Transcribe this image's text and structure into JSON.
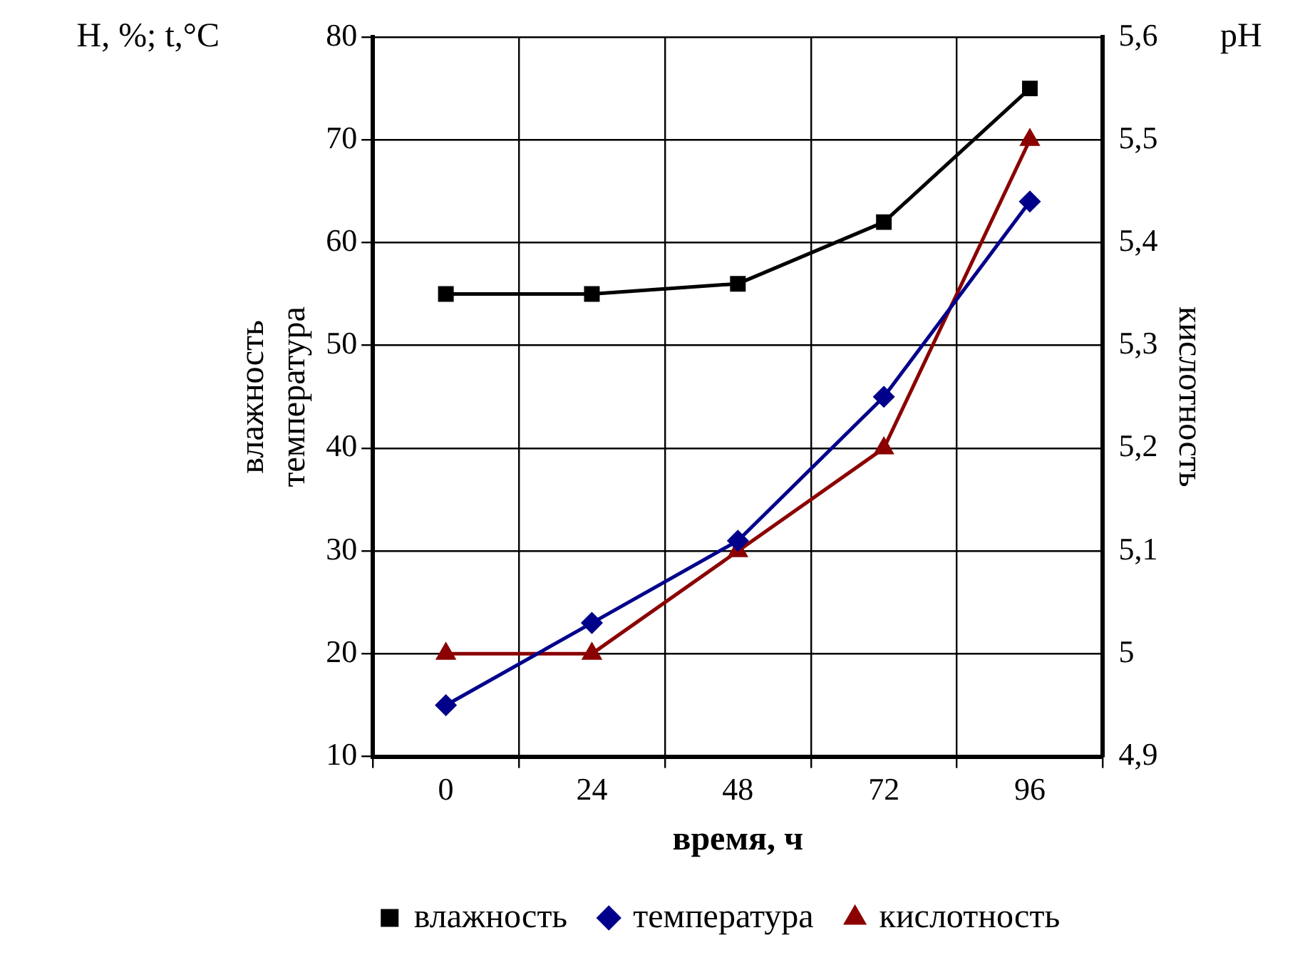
{
  "chart_data": {
    "type": "line",
    "xlabel": "время, ч",
    "ylabel": "влажность\nтемпература",
    "y2label": "кислотность",
    "annotations": [
      "H, %; t,°C",
      "pH"
    ],
    "categories": [
      "0",
      "24",
      "48",
      "72",
      "96"
    ],
    "series": [
      {
        "name": "влажность",
        "color": "#000000",
        "marker": "square",
        "values": [
          55,
          55,
          56,
          62,
          75
        ]
      },
      {
        "name": "температура",
        "color": "#00008b",
        "marker": "diamond",
        "values": [
          15,
          23,
          31,
          45,
          64
        ]
      },
      {
        "name": "кислотность",
        "color": "#8b0000",
        "marker": "triangle",
        "axis": "y2",
        "values": [
          5.0,
          5.0,
          5.1,
          5.2,
          5.5
        ]
      }
    ],
    "ylim": [
      10,
      80
    ],
    "yticks": [
      10,
      20,
      30,
      40,
      50,
      60,
      70,
      80
    ],
    "y2lim": [
      4.9,
      5.6
    ],
    "y2ticks": [
      {
        "value": 4.9,
        "label": "4,9"
      },
      {
        "value": 5.0,
        "label": "5"
      },
      {
        "value": 5.1,
        "label": "5,1"
      },
      {
        "value": 5.2,
        "label": "5,2"
      },
      {
        "value": 5.3,
        "label": "5,3"
      },
      {
        "value": 5.4,
        "label": "5,4"
      },
      {
        "value": 5.5,
        "label": "5,5"
      },
      {
        "value": 5.6,
        "label": "5,6"
      }
    ],
    "grid": true,
    "legend": "bottom",
    "line_style": "solid"
  }
}
